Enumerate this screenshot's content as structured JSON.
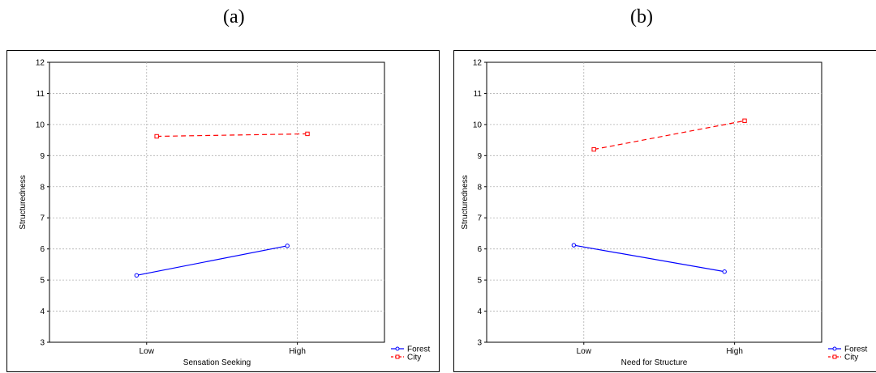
{
  "captions": {
    "a": "(a)",
    "b": "(b)"
  },
  "colors": {
    "forest": "#0000ff",
    "city": "#ff0000",
    "grid": "#b0b0b0"
  },
  "chart_data": [
    {
      "type": "line",
      "categories": [
        "Low",
        "High"
      ],
      "xlabel": "Sensation Seeking",
      "ylabel": "Structuredness",
      "ylim": [
        3,
        12
      ],
      "yticks": [
        3,
        4,
        5,
        6,
        7,
        8,
        9,
        10,
        11,
        12
      ],
      "grid": true,
      "legend": "bottom-right",
      "series": [
        {
          "name": "Forest",
          "marker": "circle",
          "dash": "solid",
          "values": [
            5.15,
            6.1
          ]
        },
        {
          "name": "City",
          "marker": "square",
          "dash": "dashed",
          "values": [
            9.62,
            9.7
          ]
        }
      ]
    },
    {
      "type": "line",
      "categories": [
        "Low",
        "High"
      ],
      "xlabel": "Need for Structure",
      "ylabel": "Structuredness",
      "ylim": [
        3,
        12
      ],
      "yticks": [
        3,
        4,
        5,
        6,
        7,
        8,
        9,
        10,
        11,
        12
      ],
      "grid": true,
      "legend": "bottom-right",
      "series": [
        {
          "name": "Forest",
          "marker": "circle",
          "dash": "solid",
          "values": [
            6.12,
            5.27
          ]
        },
        {
          "name": "City",
          "marker": "square",
          "dash": "dashed",
          "values": [
            9.2,
            10.12
          ]
        }
      ]
    }
  ]
}
